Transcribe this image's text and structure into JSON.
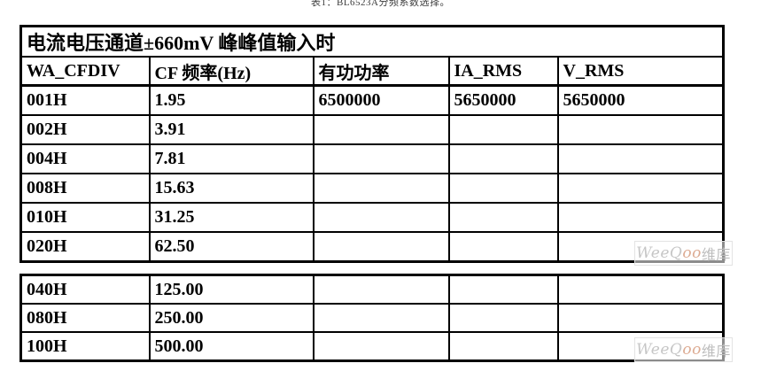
{
  "caption": {
    "text": "表1：BL6523A分频系数选择。"
  },
  "table1": {
    "title": "电流电压通道±660mV 峰峰值输入时",
    "headers": [
      "WA_CFDIV",
      "CF 频率(Hz)",
      "有功功率",
      "IA_RMS",
      "V_RMS"
    ],
    "rows": [
      [
        "001H",
        "1.95",
        "6500000",
        "5650000",
        "5650000"
      ],
      [
        "002H",
        "3.91",
        "",
        "",
        ""
      ],
      [
        "004H",
        "7.81",
        "",
        "",
        ""
      ],
      [
        "008H",
        "15.63",
        "",
        "",
        ""
      ],
      [
        "010H",
        "31.25",
        "",
        "",
        ""
      ],
      [
        "020H",
        "62.50",
        "",
        "",
        ""
      ]
    ]
  },
  "table2": {
    "rows": [
      [
        "040H",
        "125.00",
        "",
        "",
        ""
      ],
      [
        "080H",
        "250.00",
        "",
        "",
        ""
      ],
      [
        "100H",
        "500.00",
        "",
        "",
        ""
      ]
    ]
  },
  "watermark": {
    "part_latin1": "WeeQ",
    "part_latin2": "oo",
    "part_cjk": "维库"
  },
  "colors": {
    "table_border": "#000000",
    "text": "#000000",
    "watermark_gray": "#c6c6c6",
    "watermark_accent": "#ddab92"
  }
}
